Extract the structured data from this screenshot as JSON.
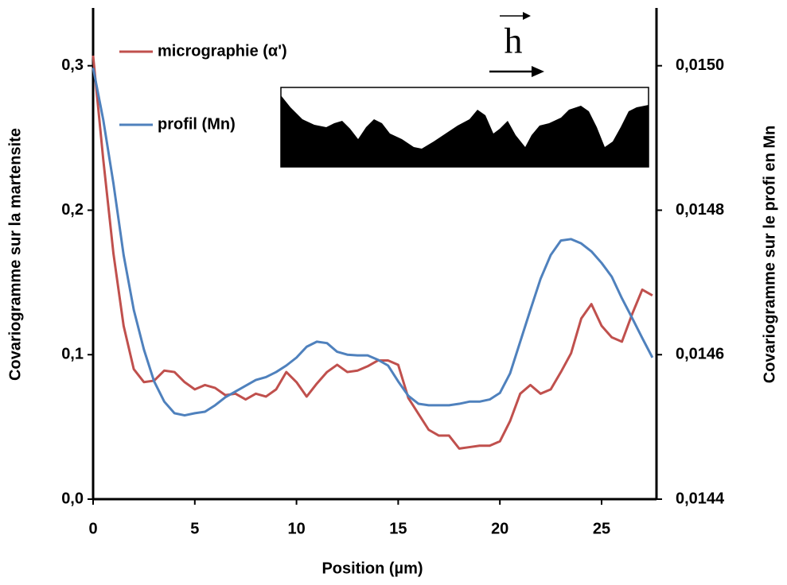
{
  "chart_data": {
    "type": "line",
    "xlabel": "Position (µm)",
    "ylabel": "Covariogramme sur la martensite",
    "y2label": "Covariogramme sur le profi en Mn",
    "annotation": "h",
    "legend": "upper left",
    "xlim": [
      0,
      27.7
    ],
    "xticks": [
      0,
      5,
      10,
      15,
      20,
      25
    ],
    "ylim": [
      0,
      0.34
    ],
    "yticks": [
      {
        "value": 0,
        "label": "0,0"
      },
      {
        "value": 0.1,
        "label": "0,1"
      },
      {
        "value": 0.2,
        "label": "0,2"
      },
      {
        "value": 0.3,
        "label": "0,3"
      }
    ],
    "y2lim": [
      0.0144,
      0.01508
    ],
    "y2ticks": [
      {
        "value": 0.0144,
        "label": "0,0144"
      },
      {
        "value": 0.0146,
        "label": "0,0146"
      },
      {
        "value": 0.0148,
        "label": "0,0148"
      },
      {
        "value": 0.015,
        "label": "0,0150"
      }
    ],
    "x": [
      0,
      0.5,
      1,
      1.5,
      2,
      2.5,
      3,
      3.5,
      4,
      4.5,
      5,
      5.5,
      6,
      6.5,
      7,
      7.5,
      8,
      8.5,
      9,
      9.5,
      10,
      10.5,
      11,
      11.5,
      12,
      12.5,
      13,
      13.5,
      14,
      14.5,
      15,
      15.5,
      16,
      16.5,
      17,
      17.5,
      18,
      18.5,
      19,
      19.5,
      20,
      20.5,
      21,
      21.5,
      22,
      22.5,
      23,
      23.5,
      24,
      24.5,
      25,
      25.5,
      26,
      26.5,
      27,
      27.5
    ],
    "series": [
      {
        "name": "micrographie (α')",
        "color": "#c0504d",
        "values": [
          0.307,
          0.235,
          0.17,
          0.12,
          0.09,
          0.081,
          0.082,
          0.089,
          0.088,
          0.081,
          0.076,
          0.079,
          0.077,
          0.072,
          0.073,
          0.069,
          0.073,
          0.071,
          0.076,
          0.088,
          0.081,
          0.071,
          0.08,
          0.088,
          0.093,
          0.088,
          0.089,
          0.092,
          0.096,
          0.096,
          0.093,
          0.07,
          0.059,
          0.048,
          0.044,
          0.044,
          0.035,
          0.036,
          0.037,
          0.037,
          0.04,
          0.054,
          0.073,
          0.079,
          0.073,
          0.076,
          0.088,
          0.101,
          0.125,
          0.135,
          0.12,
          0.112,
          0.109,
          0.128,
          0.145,
          0.141
        ]
      },
      {
        "name": "profil (Mn)",
        "color": "#4f81bd",
        "axis": "y2",
        "values": [
          0.014997,
          0.014925,
          0.014837,
          0.014738,
          0.014662,
          0.014607,
          0.014563,
          0.014535,
          0.014519,
          0.014516,
          0.014519,
          0.014521,
          0.01453,
          0.014541,
          0.014549,
          0.014557,
          0.014565,
          0.014569,
          0.014576,
          0.014585,
          0.014596,
          0.014611,
          0.014618,
          0.014616,
          0.014604,
          0.0146,
          0.014599,
          0.014599,
          0.014593,
          0.014585,
          0.014563,
          0.014543,
          0.014532,
          0.01453,
          0.01453,
          0.01453,
          0.014532,
          0.014535,
          0.014535,
          0.014538,
          0.014547,
          0.014574,
          0.014618,
          0.014662,
          0.014705,
          0.014738,
          0.014758,
          0.01476,
          0.014754,
          0.014743,
          0.014727,
          0.014708,
          0.014678,
          0.014651,
          0.014623,
          0.014596
        ]
      }
    ]
  }
}
